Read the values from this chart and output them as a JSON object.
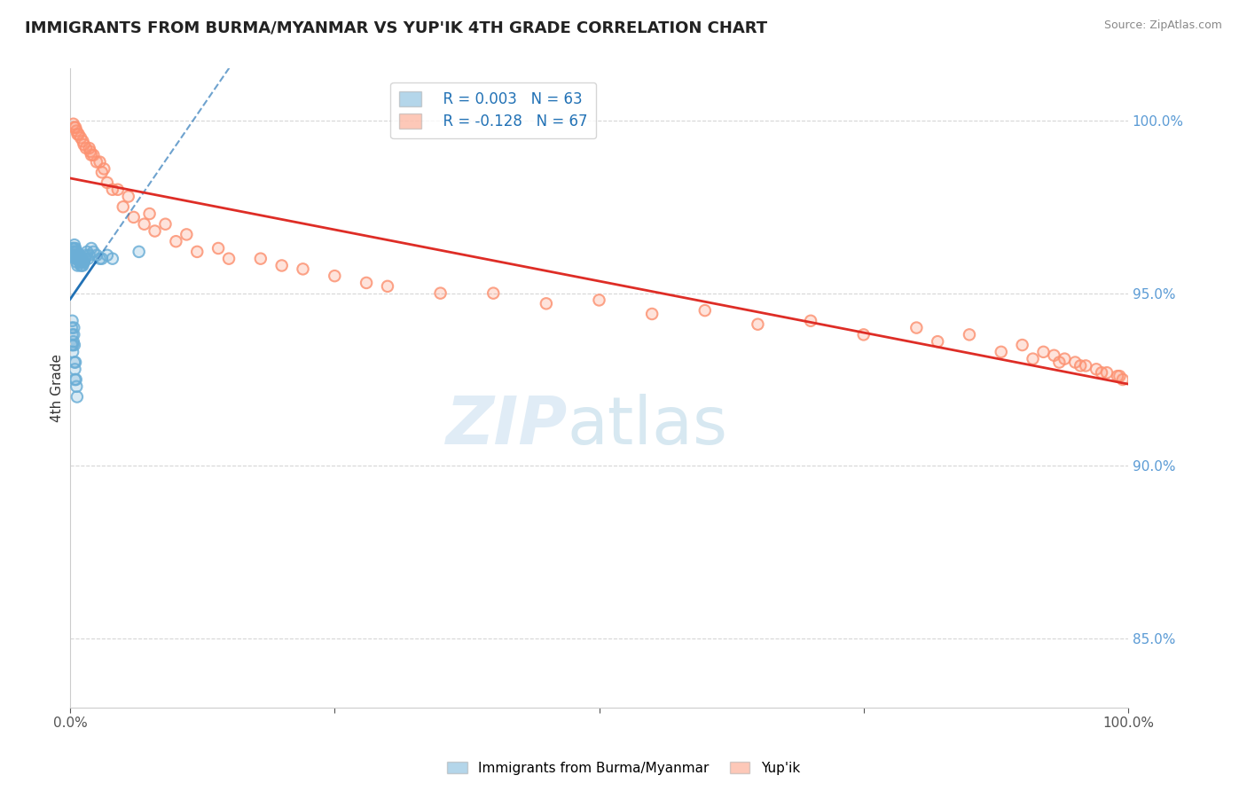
{
  "title": "IMMIGRANTS FROM BURMA/MYANMAR VS YUP'IK 4TH GRADE CORRELATION CHART",
  "source": "Source: ZipAtlas.com",
  "ylabel": "4th Grade",
  "ylabel_right_ticks": [
    85.0,
    90.0,
    95.0,
    100.0
  ],
  "xlim": [
    0.0,
    100.0
  ],
  "ylim": [
    83.0,
    101.5
  ],
  "blue_R": 0.003,
  "blue_N": 63,
  "pink_R": -0.128,
  "pink_N": 67,
  "blue_color": "#6baed6",
  "pink_color": "#fc9272",
  "blue_line_color": "#2171b5",
  "pink_line_color": "#de2d26",
  "legend_label_blue": "Immigrants from Burma/Myanmar",
  "legend_label_pink": "Yup'ik",
  "blue_scatter_x": [
    0.2,
    0.4,
    0.5,
    0.6,
    0.7,
    0.8,
    0.9,
    1.0,
    1.1,
    1.2,
    1.3,
    1.4,
    1.5,
    1.6,
    1.7,
    1.8,
    2.0,
    2.2,
    2.5,
    2.8,
    3.0,
    3.5,
    4.0,
    0.3,
    0.3,
    0.4,
    0.4,
    0.5,
    0.5,
    0.6,
    0.6,
    0.7,
    0.7,
    0.8,
    0.8,
    0.9,
    0.9,
    1.0,
    1.0,
    1.0,
    1.1,
    1.1,
    1.2,
    1.2,
    1.3,
    0.15,
    0.15,
    0.2,
    0.2,
    0.25,
    0.25,
    0.3,
    0.35,
    0.35,
    0.4,
    0.4,
    0.45,
    0.45,
    0.5,
    0.55,
    0.6,
    0.65,
    6.5
  ],
  "blue_scatter_y": [
    96.3,
    96.4,
    96.3,
    96.2,
    96.1,
    96.0,
    96.1,
    96.0,
    95.8,
    95.9,
    95.9,
    96.0,
    96.1,
    96.2,
    96.0,
    96.1,
    96.3,
    96.2,
    96.1,
    96.0,
    96.0,
    96.1,
    96.0,
    96.3,
    96.2,
    96.2,
    96.3,
    96.1,
    96.0,
    96.0,
    95.9,
    95.8,
    96.0,
    96.1,
    96.0,
    95.9,
    96.1,
    96.0,
    95.9,
    95.8,
    96.0,
    95.9,
    95.8,
    96.0,
    95.9,
    94.0,
    93.5,
    93.8,
    94.2,
    93.5,
    93.3,
    93.6,
    94.0,
    93.8,
    93.5,
    93.0,
    92.5,
    92.8,
    93.0,
    92.5,
    92.3,
    92.0,
    96.2
  ],
  "pink_scatter_x": [
    0.5,
    1.0,
    1.5,
    2.0,
    2.5,
    3.0,
    3.5,
    4.0,
    5.0,
    6.0,
    7.0,
    8.0,
    10.0,
    12.0,
    15.0,
    20.0,
    25.0,
    30.0,
    40.0,
    50.0,
    60.0,
    70.0,
    80.0,
    85.0,
    90.0,
    92.0,
    93.0,
    94.0,
    95.0,
    96.0,
    97.0,
    98.0,
    99.0,
    99.5,
    0.3,
    0.6,
    0.8,
    1.2,
    1.8,
    2.2,
    2.8,
    3.2,
    4.5,
    5.5,
    7.5,
    9.0,
    11.0,
    14.0,
    18.0,
    22.0,
    28.0,
    35.0,
    45.0,
    55.0,
    65.0,
    75.0,
    82.0,
    88.0,
    91.0,
    93.5,
    95.5,
    97.5,
    99.2,
    0.4,
    0.7,
    1.3,
    1.9
  ],
  "pink_scatter_y": [
    99.8,
    99.5,
    99.2,
    99.0,
    98.8,
    98.5,
    98.2,
    98.0,
    97.5,
    97.2,
    97.0,
    96.8,
    96.5,
    96.2,
    96.0,
    95.8,
    95.5,
    95.2,
    95.0,
    94.8,
    94.5,
    94.2,
    94.0,
    93.8,
    93.5,
    93.3,
    93.2,
    93.1,
    93.0,
    92.9,
    92.8,
    92.7,
    92.6,
    92.5,
    99.9,
    99.7,
    99.6,
    99.4,
    99.2,
    99.0,
    98.8,
    98.6,
    98.0,
    97.8,
    97.3,
    97.0,
    96.7,
    96.3,
    96.0,
    95.7,
    95.3,
    95.0,
    94.7,
    94.4,
    94.1,
    93.8,
    93.6,
    93.3,
    93.1,
    93.0,
    92.9,
    92.7,
    92.6,
    99.8,
    99.6,
    99.3,
    99.1
  ]
}
